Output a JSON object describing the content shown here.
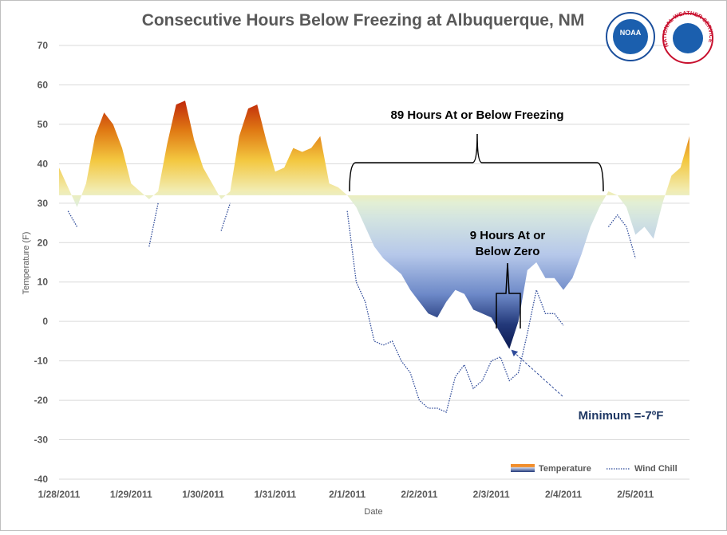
{
  "chart_data": {
    "type": "area",
    "title": "Consecutive Hours Below Freezing at Albuquerque, NM",
    "y_label": "Temperature (F)",
    "x_label": "Date",
    "area_base": 32,
    "categories": [
      "1/28/2011",
      null,
      null,
      null,
      null,
      null,
      null,
      null,
      "1/29/2011",
      null,
      null,
      null,
      null,
      null,
      null,
      null,
      "1/30/2011",
      null,
      null,
      null,
      null,
      null,
      null,
      null,
      "1/31/2011",
      null,
      null,
      null,
      null,
      null,
      null,
      null,
      "2/1/2011",
      null,
      null,
      null,
      null,
      null,
      null,
      null,
      "2/2/2011",
      null,
      null,
      null,
      null,
      null,
      null,
      null,
      "2/3/2011",
      null,
      null,
      null,
      null,
      null,
      null,
      null,
      "2/4/2011",
      null,
      null,
      null,
      null,
      null,
      null,
      null,
      "2/5/2011",
      null,
      null,
      null,
      null,
      null,
      null
    ],
    "series": [
      {
        "name": "Temperature",
        "color": "#f28e2b",
        "values": [
          39,
          34,
          29,
          35,
          47,
          53,
          50,
          44,
          35,
          33,
          31,
          33,
          45,
          55,
          56,
          46,
          39,
          35,
          31,
          33,
          47,
          54,
          55,
          46,
          38,
          39,
          44,
          43,
          44,
          47,
          35,
          34,
          32,
          29,
          24,
          19,
          16,
          14,
          12,
          8,
          5,
          2,
          1,
          5,
          8,
          7,
          3,
          2,
          1,
          -3,
          -7,
          0,
          13,
          15,
          11,
          11,
          8,
          11,
          17,
          24,
          29,
          33,
          32,
          29,
          22,
          24,
          21,
          30,
          37,
          39,
          47
        ]
      },
      {
        "name": "Wind Chill",
        "color": "#2f4b9a",
        "values": [
          null,
          28,
          24,
          null,
          null,
          null,
          null,
          null,
          null,
          null,
          19,
          30,
          null,
          null,
          null,
          null,
          null,
          null,
          23,
          30,
          null,
          null,
          null,
          null,
          null,
          null,
          null,
          null,
          null,
          null,
          null,
          null,
          28,
          10,
          5,
          -5,
          -6,
          -5,
          -10,
          -13,
          -20,
          -22,
          -22,
          -23,
          -14,
          -11,
          -17,
          -15,
          -10,
          -9,
          -15,
          -13,
          -3,
          8,
          2,
          2,
          -1,
          null,
          null,
          null,
          null,
          24,
          27,
          24,
          16,
          null,
          null,
          null,
          null,
          null,
          null
        ]
      }
    ],
    "ylim": [
      -40,
      70
    ],
    "yticks": [
      -40,
      -30,
      -20,
      -10,
      0,
      10,
      20,
      30,
      40,
      50,
      60,
      70
    ],
    "grid": true,
    "legend": "bottom-right",
    "annotations": {
      "freezing": "89 Hours At or Below Freezing",
      "zero_line1": "9 Hours At or",
      "zero_line2": "Below Zero",
      "minimum": "Minimum =-7ºF"
    },
    "logos": {
      "noaa": "NOAA",
      "nws": "NATIONAL WEATHER SERVICE"
    }
  }
}
